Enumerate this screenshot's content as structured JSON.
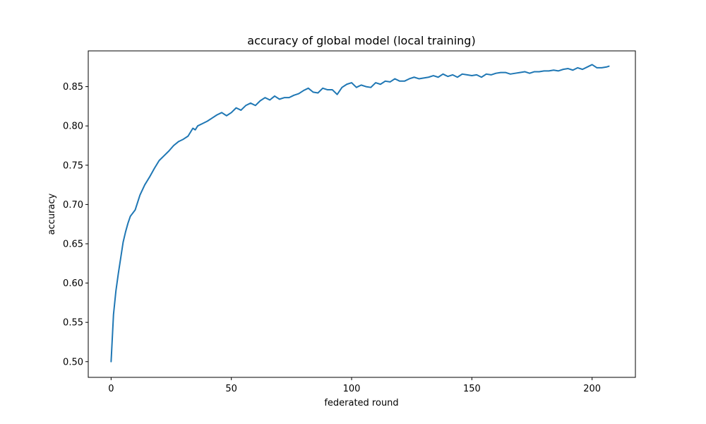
{
  "chart_data": {
    "type": "line",
    "title": "accuracy of global model (local training)",
    "xlabel": "federated round",
    "ylabel": "accuracy",
    "xlim": [
      -9.5,
      218
    ],
    "ylim": [
      0.48,
      0.8955
    ],
    "xticks": [
      0,
      50,
      100,
      150,
      200
    ],
    "yticks": [
      0.5,
      0.55,
      0.6,
      0.65,
      0.7,
      0.75,
      0.8,
      0.85
    ],
    "xtick_labels": [
      "0",
      "50",
      "100",
      "150",
      "200"
    ],
    "ytick_labels": [
      "0.50",
      "0.55",
      "0.60",
      "0.65",
      "0.70",
      "0.75",
      "0.80",
      "0.85"
    ],
    "grid": false,
    "series": [
      {
        "name": "accuracy",
        "color": "#1f77b4",
        "x": [
          0,
          1,
          2,
          3,
          4,
          5,
          6,
          7,
          8,
          10,
          12,
          14,
          16,
          18,
          20,
          22,
          24,
          26,
          28,
          30,
          32,
          34,
          35,
          36,
          38,
          40,
          42,
          44,
          46,
          48,
          50,
          52,
          54,
          56,
          58,
          60,
          62,
          64,
          66,
          68,
          70,
          72,
          74,
          76,
          78,
          80,
          82,
          84,
          86,
          88,
          90,
          92,
          94,
          96,
          98,
          100,
          102,
          104,
          106,
          108,
          110,
          112,
          114,
          116,
          118,
          120,
          122,
          124,
          126,
          128,
          130,
          132,
          134,
          136,
          138,
          140,
          142,
          144,
          146,
          148,
          150,
          152,
          154,
          156,
          158,
          160,
          162,
          164,
          166,
          168,
          170,
          172,
          174,
          176,
          178,
          180,
          182,
          184,
          186,
          188,
          190,
          192,
          194,
          196,
          198,
          200,
          202,
          204,
          206,
          207
        ],
        "y": [
          0.5,
          0.56,
          0.59,
          0.612,
          0.632,
          0.652,
          0.665,
          0.676,
          0.685,
          0.693,
          0.712,
          0.725,
          0.735,
          0.746,
          0.756,
          0.762,
          0.768,
          0.775,
          0.78,
          0.783,
          0.787,
          0.797,
          0.795,
          0.8,
          0.803,
          0.806,
          0.81,
          0.814,
          0.817,
          0.813,
          0.817,
          0.823,
          0.82,
          0.826,
          0.829,
          0.826,
          0.832,
          0.836,
          0.833,
          0.838,
          0.834,
          0.836,
          0.836,
          0.839,
          0.841,
          0.845,
          0.848,
          0.843,
          0.842,
          0.848,
          0.846,
          0.846,
          0.84,
          0.849,
          0.853,
          0.855,
          0.849,
          0.852,
          0.85,
          0.849,
          0.855,
          0.853,
          0.857,
          0.856,
          0.86,
          0.857,
          0.857,
          0.86,
          0.862,
          0.86,
          0.861,
          0.862,
          0.864,
          0.862,
          0.866,
          0.863,
          0.865,
          0.862,
          0.866,
          0.865,
          0.864,
          0.865,
          0.862,
          0.866,
          0.865,
          0.867,
          0.868,
          0.868,
          0.866,
          0.867,
          0.868,
          0.869,
          0.867,
          0.869,
          0.869,
          0.87,
          0.87,
          0.871,
          0.87,
          0.872,
          0.873,
          0.871,
          0.874,
          0.872,
          0.875,
          0.878,
          0.874,
          0.874,
          0.875,
          0.876
        ]
      }
    ]
  }
}
